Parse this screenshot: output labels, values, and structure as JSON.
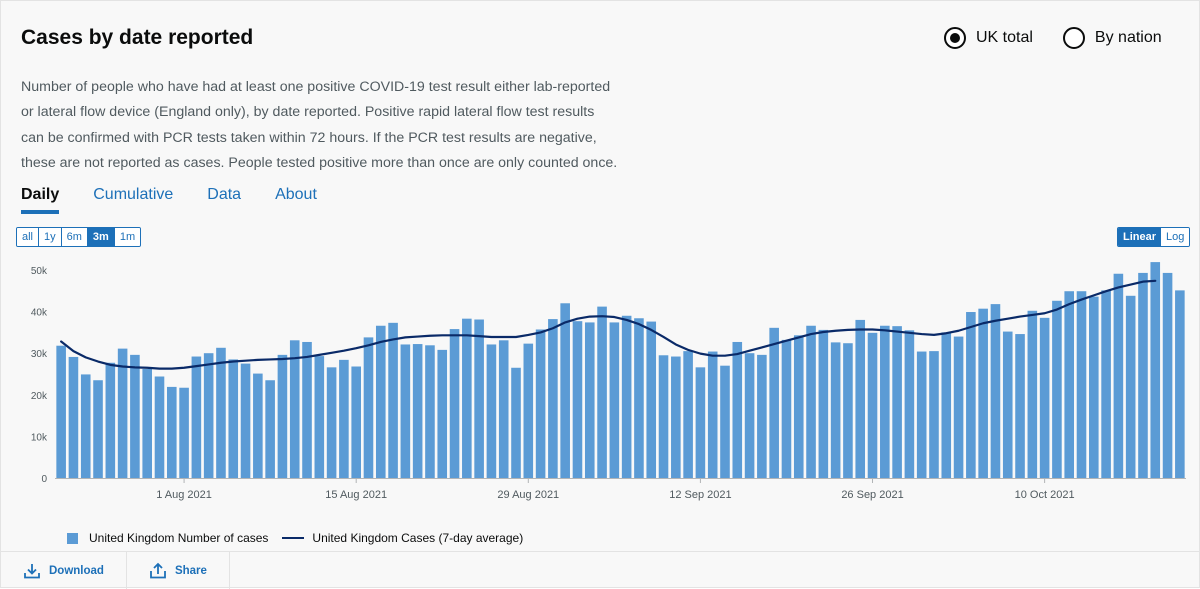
{
  "header": {
    "title": "Cases by date reported",
    "radio_options": [
      {
        "label": "UK total",
        "checked": true
      },
      {
        "label": "By nation",
        "checked": false
      }
    ]
  },
  "description": "Number of people who have had at least one positive COVID-19 test result either lab-reported or lateral flow device (England only), by date reported. Positive rapid lateral flow test results can be confirmed with PCR tests taken within 72 hours. If the PCR test results are negative, these are not reported as cases. People tested positive more than once are only counted once.",
  "tabs": [
    {
      "label": "Daily",
      "active": true
    },
    {
      "label": "Cumulative",
      "active": false
    },
    {
      "label": "Data",
      "active": false
    },
    {
      "label": "About",
      "active": false
    }
  ],
  "range_buttons": [
    {
      "label": "all",
      "active": false
    },
    {
      "label": "1y",
      "active": false
    },
    {
      "label": "6m",
      "active": false
    },
    {
      "label": "3m",
      "active": true
    },
    {
      "label": "1m",
      "active": false
    }
  ],
  "scale_buttons": [
    {
      "label": "Linear",
      "active": true
    },
    {
      "label": "Log",
      "active": false
    }
  ],
  "footer": {
    "download_label": "Download",
    "share_label": "Share",
    "download_icon": "download-icon",
    "share_icon": "share-icon"
  },
  "colors": {
    "bar": "#5b9bd5",
    "line": "#0a2a68",
    "accent": "#1d70b8"
  },
  "chart_data": {
    "type": "bar",
    "title": "",
    "xlabel": "",
    "ylabel": "",
    "ylim": [
      0,
      52000
    ],
    "yticks": [
      0,
      10000,
      20000,
      30000,
      40000,
      50000
    ],
    "ytick_labels": [
      "0",
      "10k",
      "20k",
      "30k",
      "40k",
      "50k"
    ],
    "x_start": "2021-07-22",
    "x_ticks": [
      {
        "date": "2021-08-01",
        "label": "1 Aug 2021"
      },
      {
        "date": "2021-08-15",
        "label": "15 Aug 2021"
      },
      {
        "date": "2021-08-29",
        "label": "29 Aug 2021"
      },
      {
        "date": "2021-09-12",
        "label": "12 Sep 2021"
      },
      {
        "date": "2021-09-26",
        "label": "26 Sep 2021"
      },
      {
        "date": "2021-10-10",
        "label": "10 Oct 2021"
      }
    ],
    "series": [
      {
        "name": "United Kingdom Number of cases",
        "type": "bar",
        "values": [
          31800,
          29100,
          24900,
          23500,
          27700,
          31100,
          29600,
          26200,
          24400,
          21900,
          21700,
          29200,
          30000,
          31300,
          28500,
          27500,
          25100,
          23500,
          29600,
          33100,
          32700,
          29300,
          26600,
          28400,
          26800,
          33800,
          36600,
          37300,
          32100,
          32200,
          31900,
          30800,
          35800,
          38300,
          38100,
          32100,
          33100,
          26500,
          32300,
          35700,
          38200,
          42000,
          37700,
          37400,
          41200,
          37400,
          39000,
          38400,
          37600,
          29500,
          29200,
          30500,
          26600,
          30400,
          27000,
          32700,
          30000,
          29600,
          36100,
          33200,
          34300,
          36600,
          35600,
          32600,
          32400,
          38000,
          34900,
          36600,
          36500,
          35500,
          30400,
          30500,
          35000,
          34000,
          39900,
          40700,
          41800,
          35200,
          34600,
          40200,
          38500,
          42600,
          44900,
          44900,
          43600,
          45100,
          49100,
          43800,
          49300,
          51900,
          49300,
          45100
        ],
        "color": "#5b9bd5"
      },
      {
        "name": "United Kingdom Cases (7-day average)",
        "type": "line",
        "values": [
          32800,
          30500,
          29000,
          28000,
          27200,
          26800,
          26600,
          26500,
          26300,
          26300,
          26500,
          26900,
          27300,
          27700,
          28000,
          28200,
          28400,
          28500,
          28600,
          28800,
          29100,
          29600,
          30100,
          30600,
          31200,
          31900,
          32700,
          33300,
          33800,
          34000,
          34200,
          34300,
          34300,
          34300,
          34100,
          33900,
          33900,
          33900,
          34400,
          35000,
          36000,
          37400,
          38300,
          38800,
          38900,
          38700,
          38000,
          37000,
          35600,
          33900,
          32100,
          30800,
          29900,
          29400,
          29400,
          29800,
          30600,
          31400,
          32200,
          33000,
          33800,
          34600,
          35100,
          35400,
          35600,
          35700,
          35700,
          35500,
          35200,
          34900,
          34600,
          34400,
          34800,
          35400,
          36300,
          37200,
          37800,
          38300,
          38800,
          39200,
          39600,
          40500,
          41800,
          42900,
          43900,
          44900,
          45800,
          46500,
          47200,
          47400,
          null,
          null
        ],
        "color": "#0a2a68"
      }
    ],
    "legend": "bottom-left",
    "grid": false
  }
}
